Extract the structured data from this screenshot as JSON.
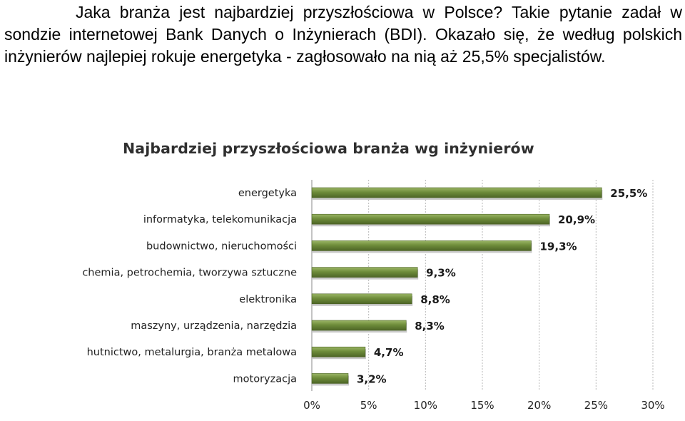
{
  "intro_text": "Jaka branża jest najbardziej przyszłościowa w Polsce? Takie pytanie zadał w sondzie internetowej Bank Danych o Inżynierach (BDI). Okazało się, że według polskich inżynierów najlepiej rokuje energetyka - zagłosowało na nią aż 25,5% specjalistów.",
  "chart_data": {
    "type": "bar",
    "orientation": "horizontal",
    "title": "Najbardziej przyszłościowa branża wg inżynierów",
    "categories": [
      "energetyka",
      "informatyka, telekomunikacja",
      "budownictwo, nieruchomości",
      "chemia, petrochemia, tworzywa sztuczne",
      "elektronika",
      "maszyny, urządzenia, narzędzia",
      "hutnictwo, metalurgia, branża metalowa",
      "motoryzacja"
    ],
    "values": [
      25.5,
      20.9,
      19.3,
      9.3,
      8.8,
      8.3,
      4.7,
      3.2
    ],
    "value_labels": [
      "25,5%",
      "20,9%",
      "19,3%",
      "9,3%",
      "8,8%",
      "8,3%",
      "4,7%",
      "3,2%"
    ],
    "xlim": [
      0,
      30
    ],
    "xticks": [
      "0%",
      "5%",
      "10%",
      "15%",
      "20%",
      "25%",
      "30%"
    ],
    "grid": true,
    "bar_color": "#6e8c3a"
  }
}
